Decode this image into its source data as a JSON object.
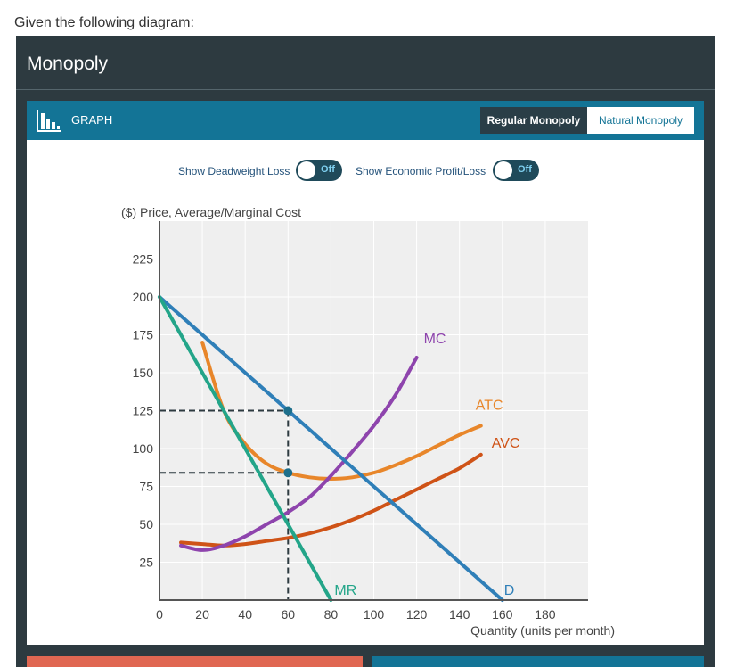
{
  "intro": "Given the following diagram:",
  "panel": {
    "title": "Monopoly"
  },
  "graph_bar": {
    "label": "GRAPH",
    "tabs": [
      "Regular Monopoly",
      "Natural Monopoly"
    ],
    "active_tab": "Regular Monopoly"
  },
  "toggles": [
    {
      "label": "Show Deadweight Loss",
      "state": "Off"
    },
    {
      "label": "Show Economic Profit/Loss",
      "state": "Off"
    }
  ],
  "colors": {
    "D": "#2f7fb8",
    "MR": "#23a589",
    "MC": "#8e44ad",
    "ATC": "#e8862a",
    "AVC": "#cf5317",
    "dashed": "#2d3a40",
    "grid": "#efefef"
  },
  "chart_data": {
    "type": "line",
    "ylabel": "($) Price, Average/Marginal Cost",
    "xlabel": "Quantity (units per month)",
    "xlim": [
      0,
      200
    ],
    "ylim": [
      0,
      250
    ],
    "x_ticks": [
      0,
      20,
      40,
      60,
      80,
      100,
      120,
      140,
      160,
      180
    ],
    "y_ticks": [
      25,
      50,
      75,
      100,
      125,
      150,
      175,
      200,
      225
    ],
    "series": [
      {
        "name": "D",
        "points": [
          [
            0,
            200
          ],
          [
            160,
            0
          ]
        ]
      },
      {
        "name": "MR",
        "points": [
          [
            0,
            200
          ],
          [
            80,
            0
          ]
        ]
      },
      {
        "name": "MC",
        "points": [
          [
            10,
            36
          ],
          [
            20,
            33
          ],
          [
            30,
            36
          ],
          [
            40,
            42
          ],
          [
            50,
            50
          ],
          [
            60,
            58
          ],
          [
            70,
            68
          ],
          [
            80,
            82
          ],
          [
            90,
            98
          ],
          [
            100,
            115
          ],
          [
            110,
            135
          ],
          [
            120,
            160
          ]
        ]
      },
      {
        "name": "ATC",
        "points": [
          [
            20,
            170
          ],
          [
            30,
            125
          ],
          [
            40,
            103
          ],
          [
            50,
            90
          ],
          [
            60,
            84
          ],
          [
            70,
            81
          ],
          [
            80,
            80
          ],
          [
            90,
            81
          ],
          [
            100,
            84
          ],
          [
            110,
            89
          ],
          [
            120,
            95
          ],
          [
            130,
            102
          ],
          [
            140,
            109
          ],
          [
            150,
            115
          ]
        ]
      },
      {
        "name": "AVC",
        "points": [
          [
            10,
            38
          ],
          [
            20,
            37
          ],
          [
            30,
            36
          ],
          [
            40,
            37
          ],
          [
            50,
            39
          ],
          [
            60,
            41
          ],
          [
            70,
            44
          ],
          [
            80,
            48
          ],
          [
            90,
            53
          ],
          [
            100,
            59
          ],
          [
            110,
            66
          ],
          [
            120,
            73
          ],
          [
            130,
            80
          ],
          [
            140,
            87
          ],
          [
            150,
            96
          ]
        ]
      }
    ],
    "markers": [
      {
        "x": 60,
        "y": 125
      },
      {
        "x": 60,
        "y": 84
      }
    ],
    "dashed_guides": [
      {
        "x": 60,
        "y": 125
      },
      {
        "x": 60,
        "y": 84
      }
    ],
    "grid": true
  }
}
